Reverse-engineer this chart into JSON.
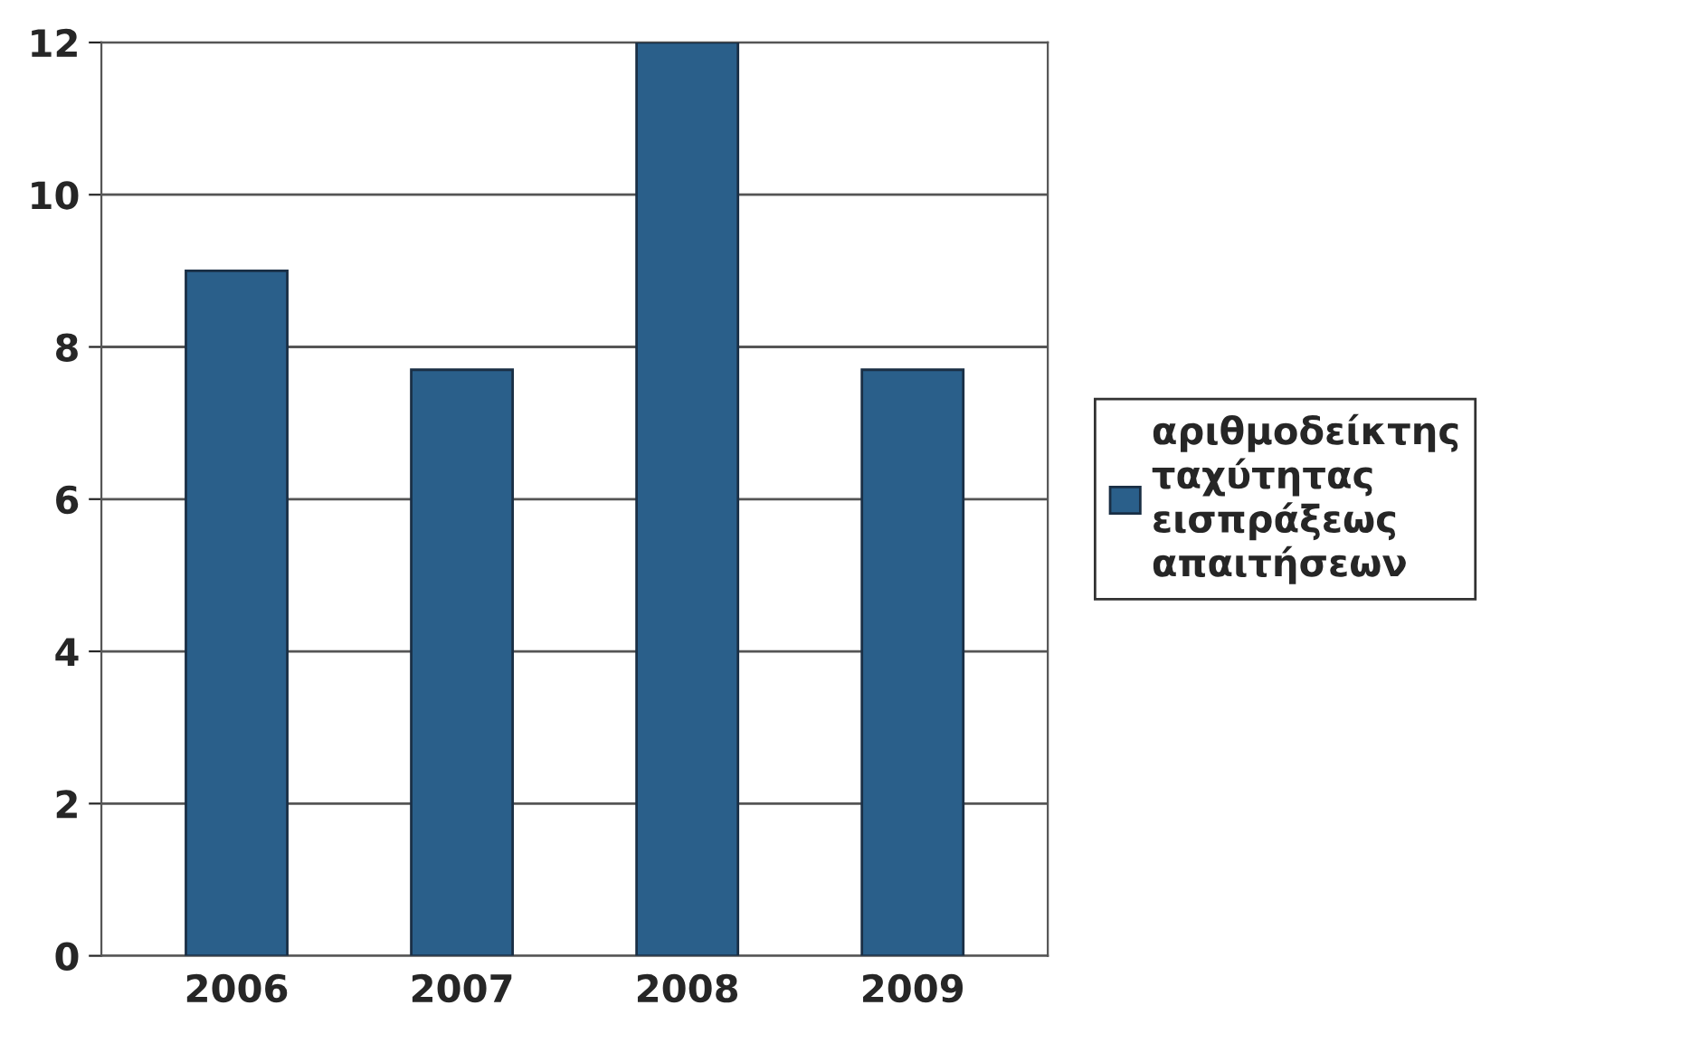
{
  "chart_data": {
    "type": "bar",
    "categories": [
      "2006",
      "2007",
      "2008",
      "2009"
    ],
    "series": [
      {
        "name": "αριθμοδείκτης\nταχύτητας\nεισπράξεως\nαπαιτήσεων",
        "color": "#2a5f8a",
        "values": [
          9,
          7.7,
          12,
          7.7
        ]
      }
    ],
    "ylim": [
      0,
      12
    ],
    "yticks": [
      0,
      2,
      4,
      6,
      8,
      10,
      12
    ],
    "grid": "y",
    "legend": "right"
  }
}
